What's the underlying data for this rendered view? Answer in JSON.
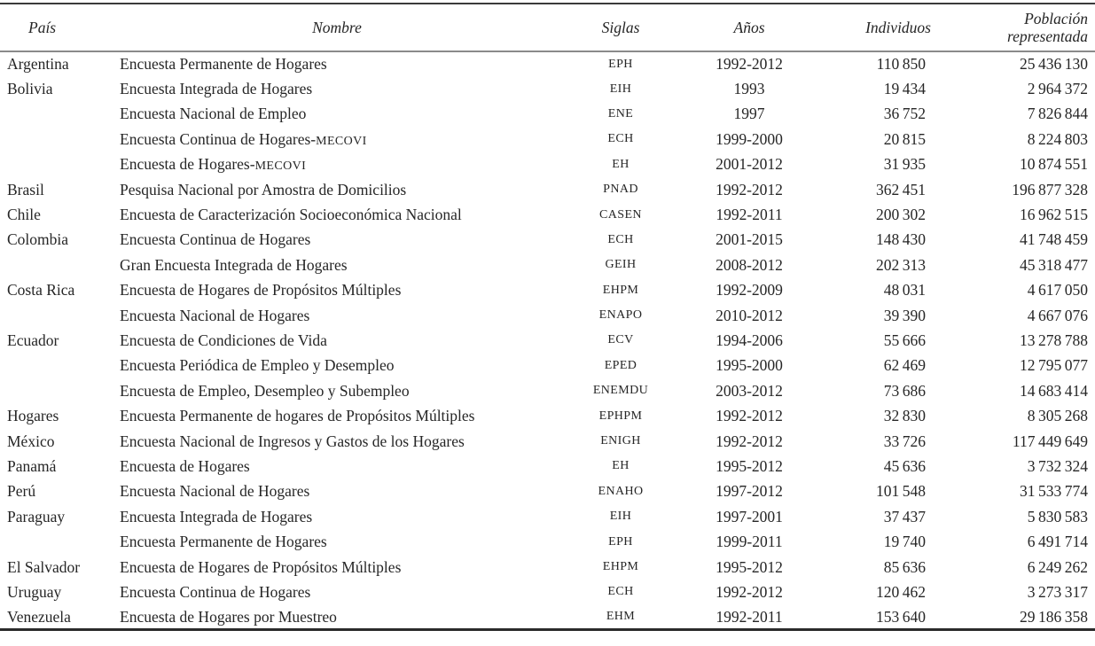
{
  "colors": {
    "text": "#262626",
    "rule_dark": "#3a3a3a",
    "rule_gray": "#8a8a8a",
    "rule_bottom": "#2a2a2a",
    "paper": "#ffffff"
  },
  "table": {
    "columns": [
      {
        "key": "pais",
        "label": "País"
      },
      {
        "key": "nombre",
        "label": "Nombre"
      },
      {
        "key": "siglas",
        "label": "Siglas"
      },
      {
        "key": "anios",
        "label": "Años"
      },
      {
        "key": "individuos",
        "label": "Individuos"
      },
      {
        "key": "poblacion",
        "label": "Población representada"
      }
    ],
    "rows": [
      {
        "pais": "Argentina",
        "nombre": "Encuesta Permanente de Hogares",
        "siglas": "EPH",
        "anios": "1992-2012",
        "individuos": "110 850",
        "poblacion": "25 436 130"
      },
      {
        "pais": "Bolivia",
        "nombre": "Encuesta Integrada de Hogares",
        "siglas": "EIH",
        "anios": "1993",
        "individuos": "19 434",
        "poblacion": "2 964 372"
      },
      {
        "pais": "",
        "nombre": "Encuesta Nacional de Empleo",
        "siglas": "ENE",
        "anios": "1997",
        "individuos": "36 752",
        "poblacion": "7 826 844"
      },
      {
        "pais": "",
        "nombre": "Encuesta Continua de Hogares-MECOVI",
        "siglas": "ECH",
        "anios": "1999-2000",
        "individuos": "20 815",
        "poblacion": "8 224 803"
      },
      {
        "pais": "",
        "nombre": "Encuesta de Hogares-MECOVI",
        "siglas": "EH",
        "anios": "2001-2012",
        "individuos": "31 935",
        "poblacion": "10 874 551"
      },
      {
        "pais": "Brasil",
        "nombre": "Pesquisa Nacional por Amostra de Domicilios",
        "siglas": "PNAD",
        "anios": "1992-2012",
        "individuos": "362 451",
        "poblacion": "196 877 328"
      },
      {
        "pais": "Chile",
        "nombre": "Encuesta de Caracterización Socioeconómica Nacional",
        "siglas": "CASEN",
        "anios": "1992-2011",
        "individuos": "200 302",
        "poblacion": "16 962 515"
      },
      {
        "pais": "Colombia",
        "nombre": "Encuesta Continua de Hogares",
        "siglas": "ECH",
        "anios": "2001-2015",
        "individuos": "148 430",
        "poblacion": "41 748 459"
      },
      {
        "pais": "",
        "nombre": "Gran Encuesta Integrada de Hogares",
        "siglas": "GEIH",
        "anios": "2008-2012",
        "individuos": "202 313",
        "poblacion": "45 318 477"
      },
      {
        "pais": "Costa Rica",
        "nombre": "Encuesta de Hogares de Propósitos Múltiples",
        "siglas": "EHPM",
        "anios": "1992-2009",
        "individuos": "48 031",
        "poblacion": "4 617 050"
      },
      {
        "pais": "",
        "nombre": "Encuesta Nacional de Hogares",
        "siglas": "ENAPO",
        "anios": "2010-2012",
        "individuos": "39 390",
        "poblacion": "4 667 076"
      },
      {
        "pais": "Ecuador",
        "nombre": "Encuesta de Condiciones de Vida",
        "siglas": "ECV",
        "anios": "1994-2006",
        "individuos": "55 666",
        "poblacion": "13 278 788"
      },
      {
        "pais": "",
        "nombre": "Encuesta Periódica de Empleo y Desempleo",
        "siglas": "EPED",
        "anios": "1995-2000",
        "individuos": "62 469",
        "poblacion": "12 795 077"
      },
      {
        "pais": "",
        "nombre": "Encuesta de Empleo, Desempleo y Subempleo",
        "siglas": "ENEMDU",
        "anios": "2003-2012",
        "individuos": "73 686",
        "poblacion": "14 683 414"
      },
      {
        "pais": "Hogares",
        "nombre": "Encuesta Permanente de hogares de Propósitos Múltiples",
        "siglas": "EPHPM",
        "anios": "1992-2012",
        "individuos": "32 830",
        "poblacion": "8 305 268"
      },
      {
        "pais": "México",
        "nombre": "Encuesta Nacional de Ingresos y Gastos de los Hogares",
        "siglas": "ENIGH",
        "anios": "1992-2012",
        "individuos": "33 726",
        "poblacion": "117 449 649"
      },
      {
        "pais": "Panamá",
        "nombre": "Encuesta de Hogares",
        "siglas": "EH",
        "anios": "1995-2012",
        "individuos": "45 636",
        "poblacion": "3 732 324"
      },
      {
        "pais": "Perú",
        "nombre": "Encuesta Nacional de Hogares",
        "siglas": "ENAHO",
        "anios": "1997-2012",
        "individuos": "101 548",
        "poblacion": "31 533 774"
      },
      {
        "pais": "Paraguay",
        "nombre": "Encuesta Integrada de Hogares",
        "siglas": "EIH",
        "anios": "1997-2001",
        "individuos": "37 437",
        "poblacion": "5 830 583"
      },
      {
        "pais": "",
        "nombre": "Encuesta Permanente de Hogares",
        "siglas": "EPH",
        "anios": "1999-2011",
        "individuos": "19 740",
        "poblacion": "6 491 714"
      },
      {
        "pais": "El Salvador",
        "nombre": "Encuesta de Hogares de Propósitos Múltiples",
        "siglas": "EHPM",
        "anios": "1995-2012",
        "individuos": "85 636",
        "poblacion": "6 249 262"
      },
      {
        "pais": "Uruguay",
        "nombre": "Encuesta Continua de Hogares",
        "siglas": "ECH",
        "anios": "1992-2012",
        "individuos": "120 462",
        "poblacion": "3 273 317"
      },
      {
        "pais": "Venezuela",
        "nombre": "Encuesta de Hogares por Muestreo",
        "siglas": "EHM",
        "anios": "1992-2011",
        "individuos": "153 640",
        "poblacion": "29 186 358"
      }
    ]
  }
}
